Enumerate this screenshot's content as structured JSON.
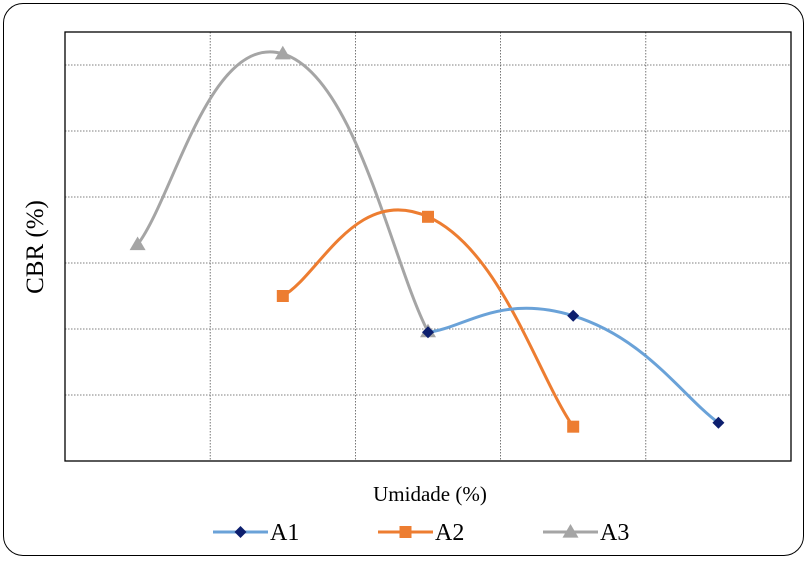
{
  "chart_data": {
    "type": "line",
    "title": "",
    "xlabel": "Umidade (%)",
    "ylabel": "CBR (%)",
    "xlim": [
      0,
      6
    ],
    "ylim": [
      0,
      6.5
    ],
    "grid": true,
    "smooth": true,
    "legend_position": "bottom",
    "series": [
      {
        "name": "A1",
        "color": "#6aa2d8",
        "marker": "diamond",
        "marker_color": "#0d1f6e",
        "x": [
          2,
          3,
          4
        ],
        "y": [
          1.95,
          2.2,
          0.58
        ]
      },
      {
        "name": "A2",
        "color": "#ed7d31",
        "marker": "square",
        "marker_color": "#ed7d31",
        "x": [
          1,
          2,
          3
        ],
        "y": [
          2.5,
          3.7,
          0.52
        ]
      },
      {
        "name": "A3",
        "color": "#a5a5a5",
        "marker": "triangle",
        "marker_color": "#a5a5a5",
        "x": [
          0,
          1,
          2
        ],
        "y": [
          3.28,
          6.17,
          1.96
        ]
      }
    ]
  }
}
